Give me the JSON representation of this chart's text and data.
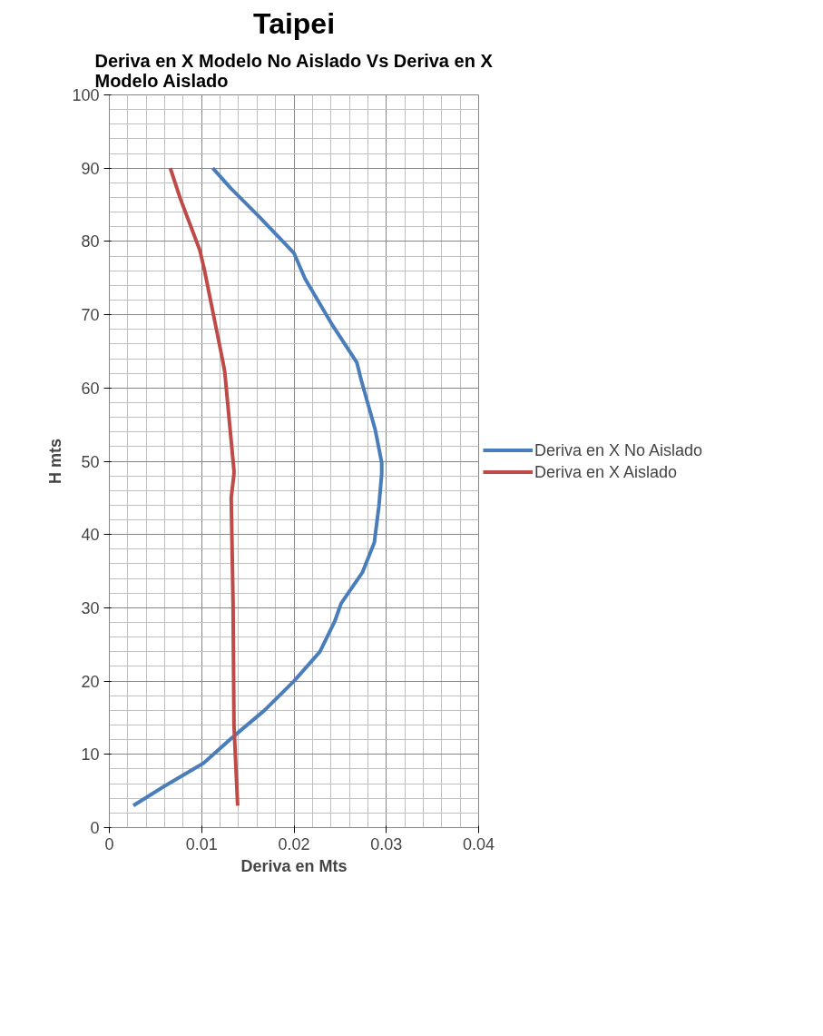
{
  "chart_data": {
    "type": "line",
    "title": "Taipei",
    "subtitle": "Deriva en X Modelo No Aislado Vs Deriva en X Modelo Aislado",
    "xlabel": "Deriva en Mts",
    "ylabel": "H mts",
    "xlim": [
      0,
      0.04
    ],
    "xticks": [
      0,
      0.01,
      0.02,
      0.03,
      0.04
    ],
    "ylim": [
      0,
      100
    ],
    "yticks": [
      0,
      10,
      20,
      30,
      40,
      50,
      60,
      70,
      80,
      90,
      100
    ],
    "grid": true,
    "legend": "right",
    "marker": "none",
    "line_style": "solid",
    "series": [
      {
        "name": "Deriva en X No Aislado",
        "color": "#4a7ebb",
        "x": [
          0.0026,
          0.0059,
          0.0102,
          0.0135,
          0.0168,
          0.02,
          0.0228,
          0.0244,
          0.0251,
          0.0274,
          0.0287,
          0.0292,
          0.0295,
          0.0295,
          0.0288,
          0.0273,
          0.0268,
          0.0242,
          0.0212,
          0.02,
          0.0191,
          0.0162,
          0.0132,
          0.0112
        ],
        "values": [
          3,
          5.6,
          8.8,
          12.5,
          16,
          20,
          24,
          28.1,
          30.6,
          34.8,
          38.9,
          43.9,
          48.3,
          49.8,
          54.3,
          61,
          63.5,
          68.5,
          74.9,
          78.4,
          79.6,
          83.4,
          87.2,
          90
        ]
      },
      {
        "name": "Deriva en X Aislado",
        "color": "#be4b48",
        "x": [
          0.0139,
          0.0135,
          0.0134,
          0.0132,
          0.0135,
          0.0135,
          0.0125,
          0.0123,
          0.0103,
          0.0098,
          0.0077,
          0.0066
        ],
        "values": [
          3,
          14,
          30.6,
          45,
          48.3,
          48.7,
          62.2,
          63.6,
          76.1,
          78.8,
          85.8,
          90
        ]
      }
    ]
  }
}
